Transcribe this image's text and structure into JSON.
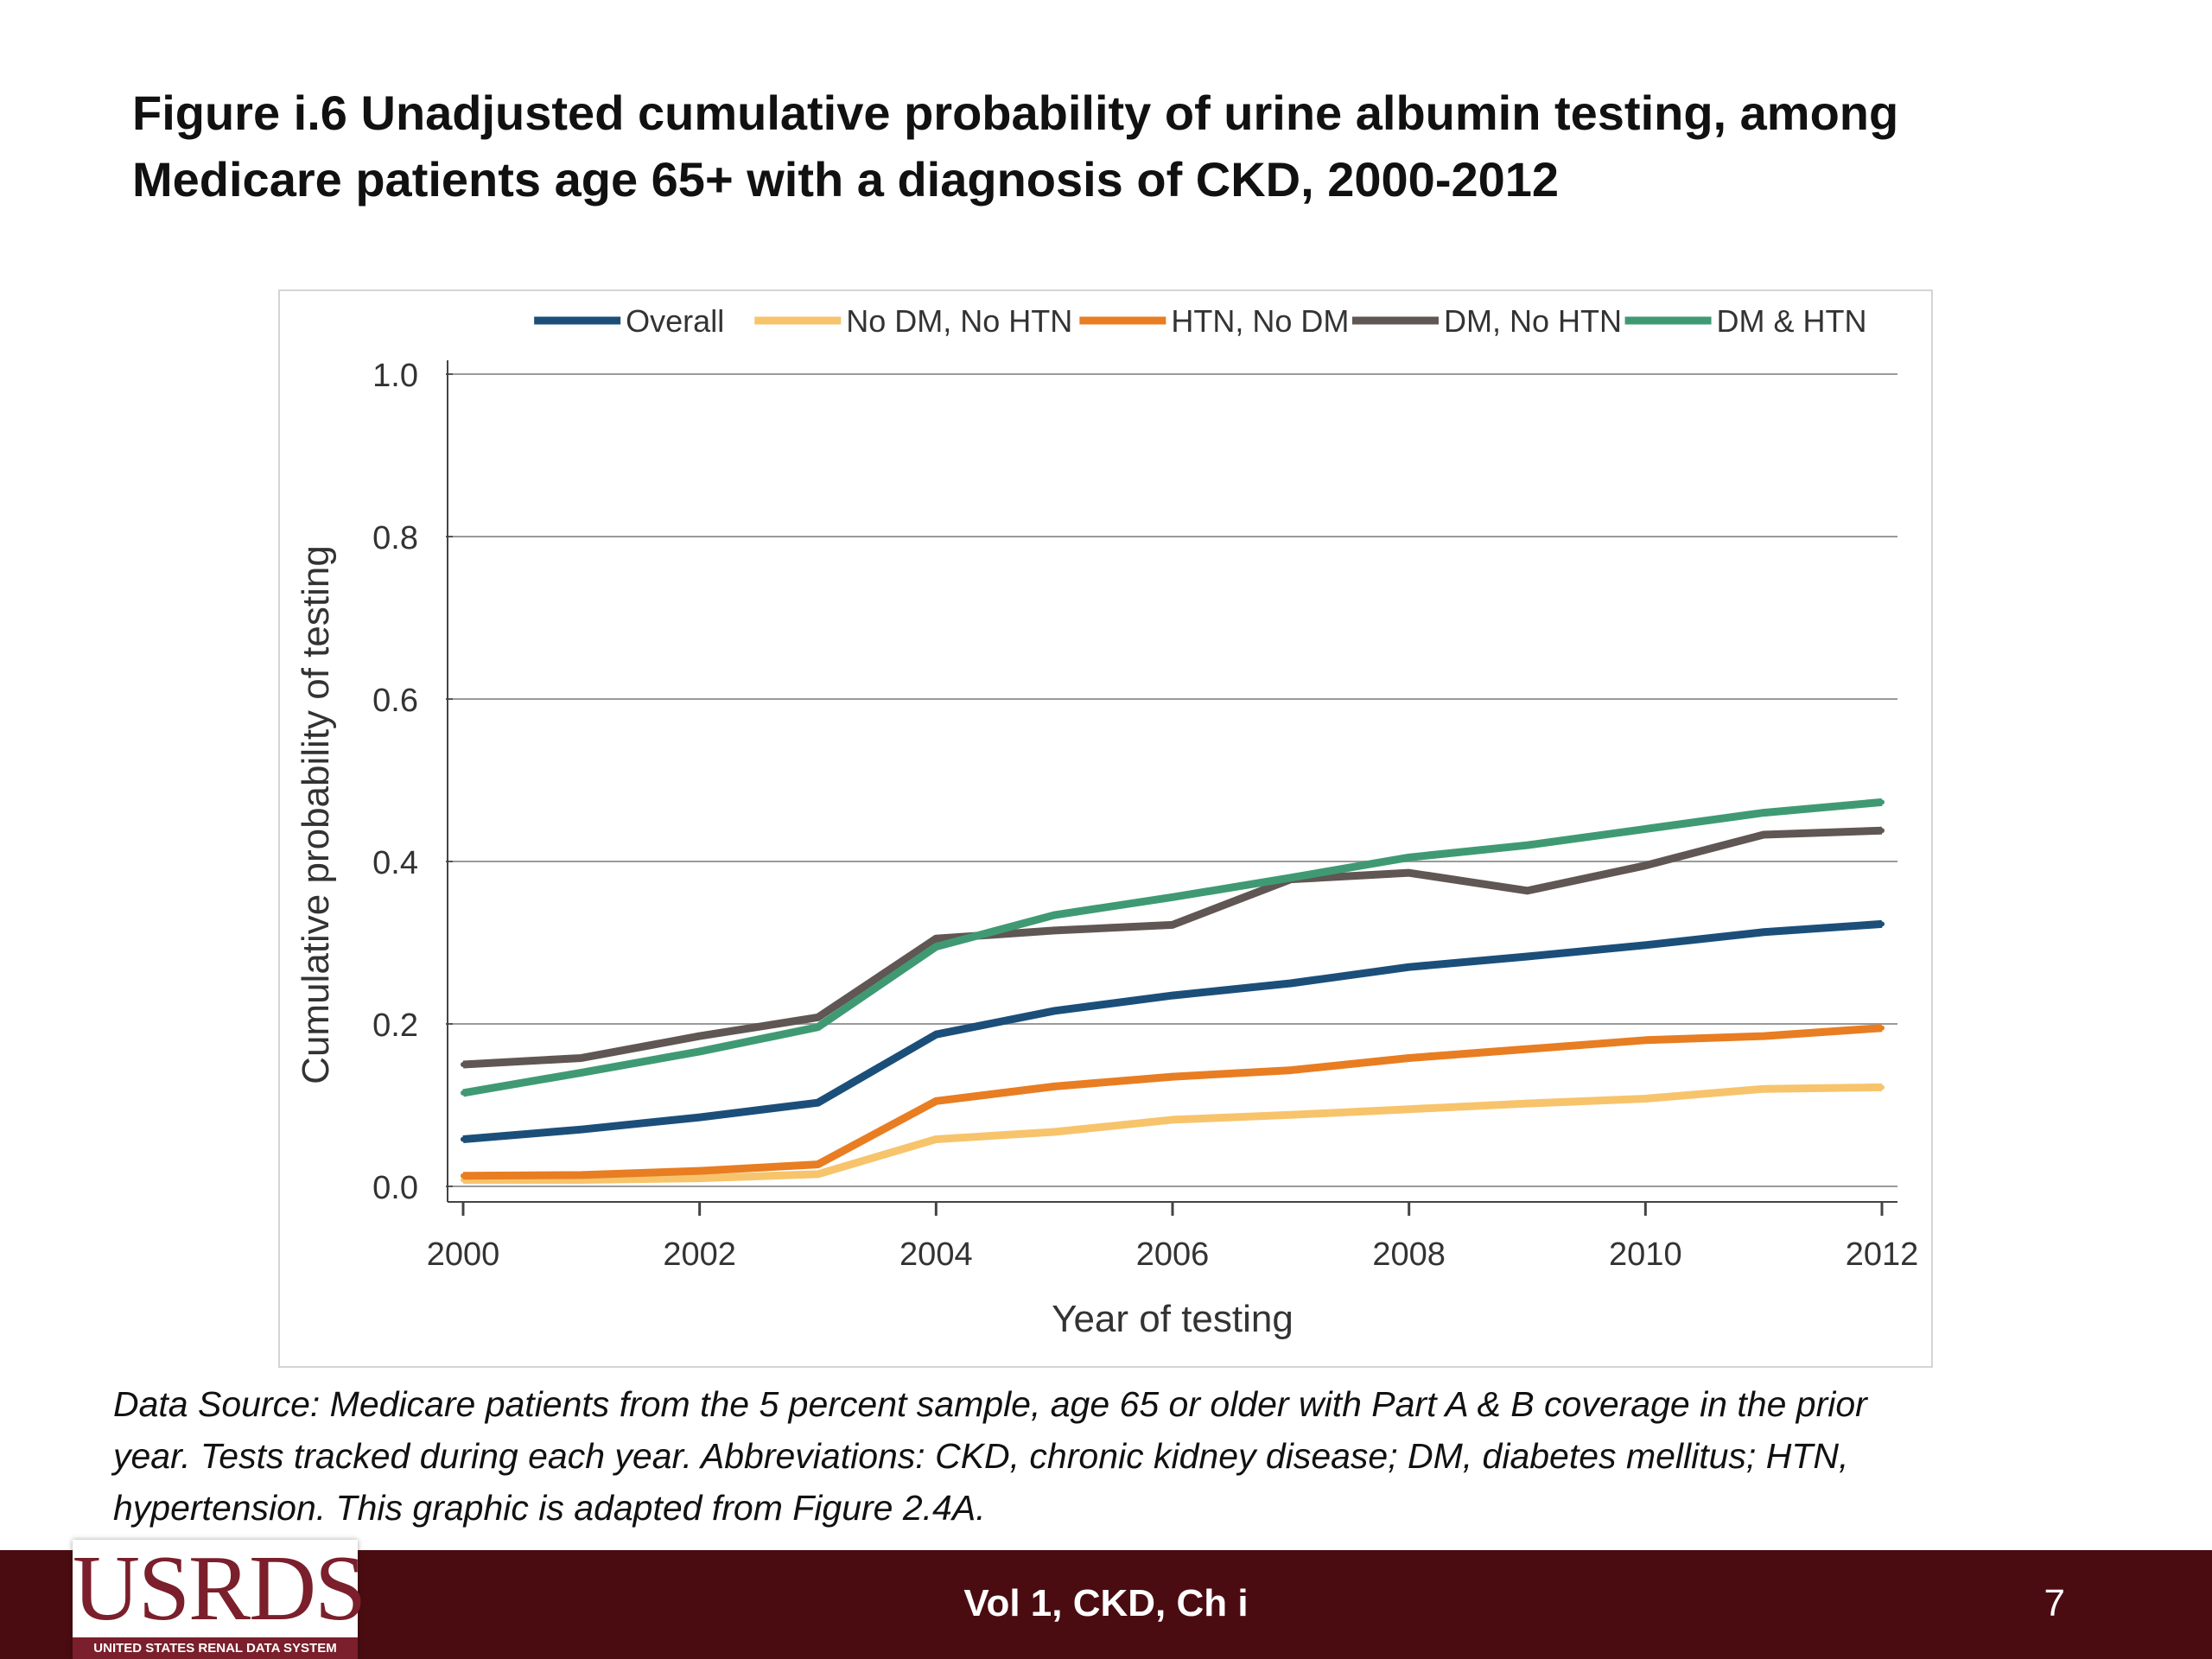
{
  "title_lines": [
    "Figure i.6  Unadjusted cumulative probability of urine albumin testing, among",
    "Medicare patients age 65+ with a diagnosis of CKD, 2000-2012"
  ],
  "source_lines": [
    "Data Source: Medicare patients from the 5 percent sample, age 65 or older with Part A & B coverage in the prior",
    "year. Tests tracked during each year. Abbreviations: CKD, chronic kidney disease; DM, diabetes mellitus; HTN,",
    "hypertension. This graphic is adapted from Figure 2.4A."
  ],
  "footer": {
    "logo_text": "USRDS",
    "logo_subtitle": "UNITED STATES RENAL DATA SYSTEM",
    "center_text": "Vol 1, CKD, Ch i",
    "page_number": "7",
    "bar_color": "#4a0c11"
  },
  "chart_data": {
    "type": "line",
    "xlabel": "Year of testing",
    "ylabel": "Cumulative probability of testing",
    "xlim": [
      2000,
      2012
    ],
    "ylim": [
      0,
      1.0
    ],
    "x_ticks": [
      "2000",
      "2002",
      "2004",
      "2006",
      "2008",
      "2010",
      "2012"
    ],
    "y_ticks": [
      "0.0",
      "0.2",
      "0.4",
      "0.6",
      "0.8",
      "1.0"
    ],
    "grid": "horizontal",
    "legend_position": "top",
    "x": [
      2000,
      2001,
      2002,
      2003,
      2004,
      2005,
      2006,
      2007,
      2008,
      2009,
      2010,
      2011,
      2012
    ],
    "series": [
      {
        "name": "Overall",
        "color": "#1b4f7a",
        "values": [
          0.058,
          0.07,
          0.085,
          0.103,
          0.187,
          0.216,
          0.235,
          0.25,
          0.27,
          0.283,
          0.297,
          0.313,
          0.323
        ]
      },
      {
        "name": "No DM, No HTN",
        "color": "#f7c46c",
        "values": [
          0.008,
          0.008,
          0.01,
          0.015,
          0.058,
          0.067,
          0.082,
          0.088,
          0.095,
          0.102,
          0.108,
          0.12,
          0.122
        ]
      },
      {
        "name": "HTN, No DM",
        "color": "#e87d22",
        "values": [
          0.013,
          0.014,
          0.019,
          0.027,
          0.105,
          0.123,
          0.135,
          0.143,
          0.158,
          0.169,
          0.18,
          0.185,
          0.195
        ]
      },
      {
        "name": "DM, No HTN",
        "color": "#605653",
        "values": [
          0.15,
          0.158,
          0.185,
          0.208,
          0.305,
          0.315,
          0.322,
          0.378,
          0.386,
          0.364,
          0.395,
          0.433,
          0.438
        ]
      },
      {
        "name": "DM & HTN",
        "color": "#3f9a74",
        "values": [
          0.115,
          0.14,
          0.166,
          0.196,
          0.295,
          0.334,
          0.356,
          0.38,
          0.405,
          0.42,
          0.44,
          0.46,
          0.473
        ]
      }
    ]
  }
}
